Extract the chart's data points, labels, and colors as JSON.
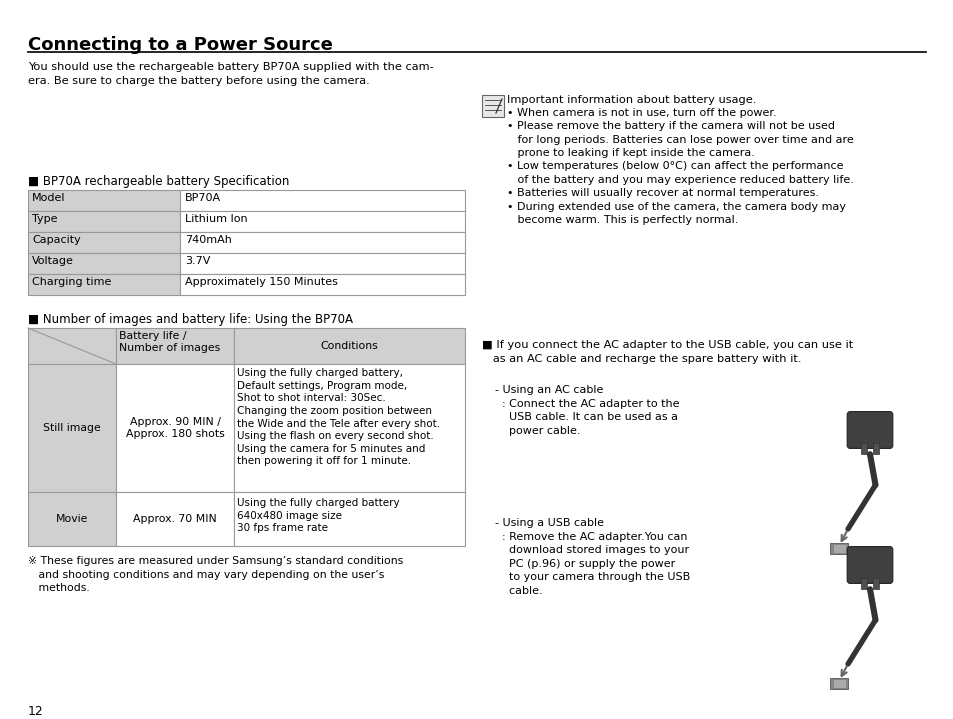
{
  "title": "Connecting to a Power Source",
  "bg_color": "#ffffff",
  "text_color": "#000000",
  "page_number": "12",
  "intro_text": "You should use the rechargeable battery BP70A supplied with the cam-\nera. Be sure to charge the battery before using the camera.",
  "spec_title": "■ BP70A rechargeable battery Specification",
  "spec_rows": [
    [
      "Model",
      "BP70A"
    ],
    [
      "Type",
      "Lithium Ion"
    ],
    [
      "Capacity",
      "740mAh"
    ],
    [
      "Voltage",
      "3.7V"
    ],
    [
      "Charging time",
      "Approximately 150 Minutes"
    ]
  ],
  "battery_table_title": "■ Number of images and battery life: Using the BP70A",
  "bt_col2_header": "Battery life /\nNumber of images",
  "bt_col3_header": "Conditions",
  "bt_row1_col1": "Still image",
  "bt_row1_col2": "Approx. 90 MIN /\nApprox. 180 shots",
  "bt_row1_col3": "Using the fully charged battery,\nDefault settings, Program mode,\nShot to shot interval: 30Sec.\nChanging the zoom position between\nthe Wide and the Tele after every shot.\nUsing the flash on every second shot.\nUsing the camera for 5 minutes and\nthen powering it off for 1 minute.",
  "bt_row2_col1": "Movie",
  "bt_row2_col2": "Approx. 70 MIN",
  "bt_row2_col3": "Using the fully charged battery\n640x480 image size\n30 fps frame rate",
  "footnote": "※ These figures are measured under Samsung’s standard conditions\n   and shooting conditions and may vary depending on the user’s\n   methods.",
  "right_info_line1": "Important information about battery usage.",
  "right_info_bullets": "• When camera is not in use, turn off the power.\n• Please remove the battery if the camera will not be used\n   for long periods. Batteries can lose power over time and are\n   prone to leaking if kept inside the camera.\n• Low temperatures (below 0°C) can affect the performance\n   of the battery and you may experience reduced battery life.\n• Batteries will usually recover at normal temperatures.\n• During extended use of the camera, the camera body may\n   become warm. This is perfectly normal.",
  "right_ac_intro": "■ If you connect the AC adapter to the USB cable, you can use it\n   as an AC cable and recharge the spare battery with it.",
  "right_ac_cable": "- Using an AC cable\n  : Connect the AC adapter to the\n    USB cable. It can be used as a\n    power cable.",
  "right_usb_cable": "- Using a USB cable\n  : Remove the AC adapter.You can\n    download stored images to your\n    PC (p.96) or supply the power\n    to your camera through the USB\n    cable.",
  "shading_color": "#d0d0d0",
  "table_border_color": "#999999"
}
